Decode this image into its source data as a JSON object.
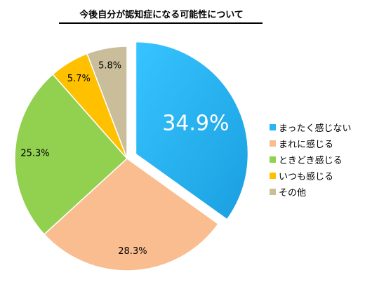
{
  "chart_data": {
    "type": "pie",
    "title": "今後自分が認知症になる可能性について",
    "categories": [
      "まったく感じない",
      "まれに感じる",
      "ときどき感じる",
      "いつも感じる",
      "その他"
    ],
    "values": [
      34.9,
      28.3,
      25.3,
      5.7,
      5.8
    ],
    "labels": [
      "34.9%",
      "28.3%",
      "25.3%",
      "5.7%",
      "5.8%"
    ],
    "colors": [
      "#2ab4f2",
      "#f9bd8f",
      "#92d050",
      "#ffc000",
      "#c9bd9a"
    ],
    "exploded_slice": "まったく感じない",
    "start_angle": "top, clockwise",
    "legend_position": "right"
  }
}
